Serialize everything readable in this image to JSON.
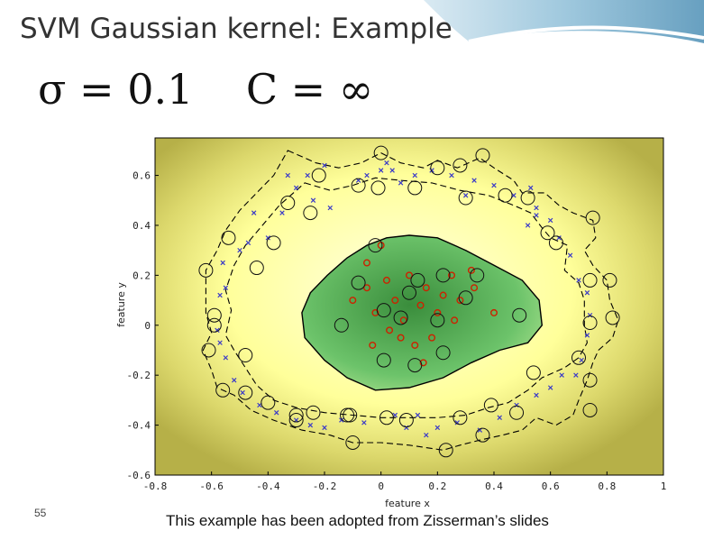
{
  "slide": {
    "title": "SVM Gaussian kernel: Example",
    "formula_sigma": "σ = 0.1",
    "formula_c": "C = ∞",
    "slide_number": "55",
    "caption": "This example has been adopted from Zisserman’s slides"
  },
  "chart_data": {
    "type": "scatter",
    "xlabel": "feature x",
    "ylabel": "feature y",
    "xlim": [
      -0.8,
      1.0
    ],
    "ylim": [
      -0.6,
      0.75
    ],
    "xticks": [
      "-0.8",
      "-0.6",
      "-0.4",
      "-0.2",
      "0",
      "0.2",
      "0.4",
      "0.6",
      "0.8",
      "1"
    ],
    "yticks": [
      "0.6",
      "0.4",
      "0.2",
      "0",
      "-0.2",
      "-0.4",
      "-0.6"
    ],
    "grid": false,
    "colors": {
      "positive": "#cc2200",
      "negative": "#3a3ac8",
      "support": "#111111",
      "inside": "#3aa040",
      "outside": "#b8b048"
    },
    "decision_boundary": [
      [
        -0.27,
        -0.05
      ],
      [
        -0.28,
        0.05
      ],
      [
        -0.25,
        0.13
      ],
      [
        -0.19,
        0.2
      ],
      [
        -0.12,
        0.27
      ],
      [
        -0.05,
        0.32
      ],
      [
        0.02,
        0.35
      ],
      [
        0.1,
        0.36
      ],
      [
        0.2,
        0.35
      ],
      [
        0.3,
        0.3
      ],
      [
        0.4,
        0.24
      ],
      [
        0.5,
        0.18
      ],
      [
        0.56,
        0.1
      ],
      [
        0.57,
        0.0
      ],
      [
        0.52,
        -0.07
      ],
      [
        0.42,
        -0.1
      ],
      [
        0.32,
        -0.15
      ],
      [
        0.22,
        -0.21
      ],
      [
        0.1,
        -0.25
      ],
      [
        -0.02,
        -0.26
      ],
      [
        -0.12,
        -0.21
      ],
      [
        -0.2,
        -0.14
      ]
    ],
    "margin_outer": [
      [
        -0.33,
        0.7
      ],
      [
        -0.23,
        0.65
      ],
      [
        -0.15,
        0.63
      ],
      [
        -0.07,
        0.65
      ],
      [
        0.0,
        0.69
      ],
      [
        0.07,
        0.65
      ],
      [
        0.15,
        0.63
      ],
      [
        0.2,
        0.66
      ],
      [
        0.27,
        0.63
      ],
      [
        0.35,
        0.67
      ],
      [
        0.4,
        0.63
      ],
      [
        0.47,
        0.58
      ],
      [
        0.5,
        0.53
      ],
      [
        0.58,
        0.53
      ],
      [
        0.63,
        0.48
      ],
      [
        0.68,
        0.45
      ],
      [
        0.75,
        0.42
      ],
      [
        0.76,
        0.35
      ],
      [
        0.72,
        0.3
      ],
      [
        0.75,
        0.24
      ],
      [
        0.8,
        0.18
      ],
      [
        0.81,
        0.1
      ],
      [
        0.84,
        0.02
      ],
      [
        0.82,
        -0.05
      ],
      [
        0.77,
        -0.1
      ],
      [
        0.75,
        -0.15
      ],
      [
        0.73,
        -0.22
      ],
      [
        0.7,
        -0.3
      ],
      [
        0.68,
        -0.36
      ],
      [
        0.62,
        -0.4
      ],
      [
        0.55,
        -0.37
      ],
      [
        0.5,
        -0.42
      ],
      [
        0.43,
        -0.44
      ],
      [
        0.35,
        -0.46
      ],
      [
        0.28,
        -0.48
      ],
      [
        0.22,
        -0.5
      ],
      [
        0.1,
        -0.48
      ],
      [
        0.0,
        -0.47
      ],
      [
        -0.1,
        -0.47
      ],
      [
        -0.18,
        -0.44
      ],
      [
        -0.28,
        -0.42
      ],
      [
        -0.38,
        -0.38
      ],
      [
        -0.46,
        -0.34
      ],
      [
        -0.52,
        -0.28
      ],
      [
        -0.58,
        -0.25
      ],
      [
        -0.6,
        -0.18
      ],
      [
        -0.63,
        -0.1
      ],
      [
        -0.6,
        -0.03
      ],
      [
        -0.62,
        0.05
      ],
      [
        -0.62,
        0.12
      ],
      [
        -0.62,
        0.22
      ],
      [
        -0.58,
        0.3
      ],
      [
        -0.55,
        0.38
      ],
      [
        -0.5,
        0.46
      ],
      [
        -0.44,
        0.53
      ],
      [
        -0.38,
        0.6
      ]
    ],
    "margin_inner": [
      [
        -0.27,
        0.57
      ],
      [
        -0.18,
        0.54
      ],
      [
        -0.1,
        0.56
      ],
      [
        -0.02,
        0.59
      ],
      [
        0.07,
        0.58
      ],
      [
        0.18,
        0.57
      ],
      [
        0.28,
        0.54
      ],
      [
        0.38,
        0.52
      ],
      [
        0.47,
        0.48
      ],
      [
        0.53,
        0.45
      ],
      [
        0.57,
        0.39
      ],
      [
        0.6,
        0.35
      ],
      [
        0.66,
        0.32
      ],
      [
        0.65,
        0.22
      ],
      [
        0.7,
        0.17
      ],
      [
        0.72,
        0.1
      ],
      [
        0.72,
        0.0
      ],
      [
        0.73,
        -0.07
      ],
      [
        0.7,
        -0.13
      ],
      [
        0.65,
        -0.17
      ],
      [
        0.57,
        -0.21
      ],
      [
        0.52,
        -0.26
      ],
      [
        0.45,
        -0.31
      ],
      [
        0.38,
        -0.33
      ],
      [
        0.3,
        -0.36
      ],
      [
        0.2,
        -0.37
      ],
      [
        0.1,
        -0.37
      ],
      [
        0.0,
        -0.37
      ],
      [
        -0.1,
        -0.36
      ],
      [
        -0.2,
        -0.35
      ],
      [
        -0.3,
        -0.33
      ],
      [
        -0.38,
        -0.3
      ],
      [
        -0.44,
        -0.24
      ],
      [
        -0.48,
        -0.17
      ],
      [
        -0.52,
        -0.1
      ],
      [
        -0.55,
        -0.04
      ],
      [
        -0.53,
        0.06
      ],
      [
        -0.55,
        0.14
      ],
      [
        -0.52,
        0.24
      ],
      [
        -0.48,
        0.32
      ],
      [
        -0.42,
        0.4
      ],
      [
        -0.36,
        0.48
      ]
    ],
    "positive_points": [
      [
        -0.05,
        0.25
      ],
      [
        -0.05,
        0.15
      ],
      [
        0.02,
        0.18
      ],
      [
        0.1,
        0.2
      ],
      [
        0.16,
        0.15
      ],
      [
        0.05,
        0.1
      ],
      [
        -0.02,
        0.05
      ],
      [
        0.08,
        0.02
      ],
      [
        0.14,
        0.08
      ],
      [
        0.2,
        0.05
      ],
      [
        0.22,
        0.12
      ],
      [
        0.28,
        0.1
      ],
      [
        0.32,
        0.22
      ],
      [
        0.25,
        0.2
      ],
      [
        0.03,
        -0.02
      ],
      [
        0.07,
        -0.05
      ],
      [
        0.12,
        -0.08
      ],
      [
        0.18,
        -0.05
      ],
      [
        -0.03,
        -0.08
      ],
      [
        0.26,
        0.02
      ],
      [
        0.33,
        0.15
      ],
      [
        -0.1,
        0.1
      ],
      [
        0.0,
        0.32
      ],
      [
        0.4,
        0.05
      ],
      [
        0.15,
        -0.15
      ]
    ],
    "negative_points": [
      [
        -0.33,
        0.6
      ],
      [
        -0.26,
        0.6
      ],
      [
        -0.2,
        0.64
      ],
      [
        -0.3,
        0.55
      ],
      [
        -0.24,
        0.5
      ],
      [
        -0.18,
        0.47
      ],
      [
        -0.35,
        0.45
      ],
      [
        -0.45,
        0.45
      ],
      [
        -0.4,
        0.35
      ],
      [
        -0.47,
        0.33
      ],
      [
        -0.5,
        0.3
      ],
      [
        -0.56,
        0.25
      ],
      [
        -0.55,
        0.15
      ],
      [
        -0.57,
        0.12
      ],
      [
        -0.58,
        -0.02
      ],
      [
        -0.57,
        -0.07
      ],
      [
        -0.55,
        -0.13
      ],
      [
        -0.52,
        -0.22
      ],
      [
        -0.49,
        -0.27
      ],
      [
        -0.43,
        -0.32
      ],
      [
        -0.37,
        -0.35
      ],
      [
        -0.3,
        -0.38
      ],
      [
        -0.25,
        -0.4
      ],
      [
        -0.2,
        -0.41
      ],
      [
        -0.14,
        -0.38
      ],
      [
        -0.06,
        -0.39
      ],
      [
        0.05,
        -0.36
      ],
      [
        0.13,
        -0.36
      ],
      [
        0.2,
        -0.41
      ],
      [
        0.27,
        -0.39
      ],
      [
        0.35,
        -0.42
      ],
      [
        0.42,
        -0.37
      ],
      [
        0.48,
        -0.32
      ],
      [
        0.55,
        -0.28
      ],
      [
        0.6,
        -0.25
      ],
      [
        0.64,
        -0.2
      ],
      [
        0.69,
        -0.2
      ],
      [
        0.71,
        -0.14
      ],
      [
        0.73,
        -0.04
      ],
      [
        0.74,
        0.04
      ],
      [
        0.73,
        0.13
      ],
      [
        0.7,
        0.18
      ],
      [
        0.67,
        0.28
      ],
      [
        0.63,
        0.35
      ],
      [
        0.6,
        0.42
      ],
      [
        0.55,
        0.47
      ],
      [
        0.47,
        0.52
      ],
      [
        0.4,
        0.56
      ],
      [
        0.33,
        0.58
      ],
      [
        0.25,
        0.6
      ],
      [
        0.18,
        0.62
      ],
      [
        0.12,
        0.6
      ],
      [
        0.04,
        0.62
      ],
      [
        0.02,
        0.65
      ],
      [
        0.0,
        0.62
      ],
      [
        -0.05,
        0.6
      ],
      [
        0.07,
        0.57
      ],
      [
        -0.08,
        0.58
      ],
      [
        0.53,
        0.55
      ],
      [
        0.3,
        0.52
      ],
      [
        0.52,
        0.4
      ],
      [
        0.55,
        0.44
      ],
      [
        0.09,
        -0.41
      ],
      [
        0.16,
        -0.44
      ]
    ],
    "support_vectors": [
      [
        -0.02,
        0.32
      ],
      [
        -0.08,
        0.17
      ],
      [
        0.13,
        0.18
      ],
      [
        0.22,
        0.2
      ],
      [
        0.34,
        0.2
      ],
      [
        0.1,
        0.13
      ],
      [
        0.3,
        0.11
      ],
      [
        0.07,
        0.03
      ],
      [
        0.01,
        0.06
      ],
      [
        0.2,
        0.02
      ],
      [
        -0.14,
        0.0
      ],
      [
        0.22,
        -0.11
      ],
      [
        0.12,
        -0.16
      ],
      [
        0.01,
        -0.14
      ],
      [
        0.49,
        0.04
      ],
      [
        0.0,
        0.69
      ],
      [
        0.12,
        0.55
      ],
      [
        -0.01,
        0.55
      ],
      [
        -0.08,
        0.56
      ],
      [
        -0.22,
        0.6
      ],
      [
        -0.25,
        0.45
      ],
      [
        -0.33,
        0.49
      ],
      [
        -0.38,
        0.33
      ],
      [
        -0.44,
        0.23
      ],
      [
        -0.54,
        0.35
      ],
      [
        -0.62,
        0.22
      ],
      [
        -0.59,
        0.04
      ],
      [
        -0.61,
        -0.1
      ],
      [
        -0.59,
        0.0
      ],
      [
        -0.48,
        -0.12
      ],
      [
        -0.56,
        -0.26
      ],
      [
        -0.48,
        -0.27
      ],
      [
        -0.4,
        -0.31
      ],
      [
        -0.3,
        -0.36
      ],
      [
        -0.3,
        -0.38
      ],
      [
        -0.24,
        -0.35
      ],
      [
        -0.11,
        -0.36
      ],
      [
        -0.1,
        -0.47
      ],
      [
        -0.12,
        -0.36
      ],
      [
        0.02,
        -0.37
      ],
      [
        0.09,
        -0.38
      ],
      [
        0.28,
        -0.37
      ],
      [
        0.23,
        -0.5
      ],
      [
        0.36,
        -0.44
      ],
      [
        0.39,
        -0.32
      ],
      [
        0.48,
        -0.35
      ],
      [
        0.54,
        -0.19
      ],
      [
        0.7,
        -0.13
      ],
      [
        0.74,
        -0.22
      ],
      [
        0.74,
        -0.34
      ],
      [
        0.74,
        0.01
      ],
      [
        0.82,
        0.03
      ],
      [
        0.74,
        0.18
      ],
      [
        0.81,
        0.18
      ],
      [
        0.75,
        0.43
      ],
      [
        0.59,
        0.37
      ],
      [
        0.62,
        0.33
      ],
      [
        0.52,
        0.51
      ],
      [
        0.44,
        0.52
      ],
      [
        0.36,
        0.68
      ],
      [
        0.28,
        0.64
      ],
      [
        0.2,
        0.63
      ],
      [
        0.3,
        0.51
      ]
    ]
  }
}
